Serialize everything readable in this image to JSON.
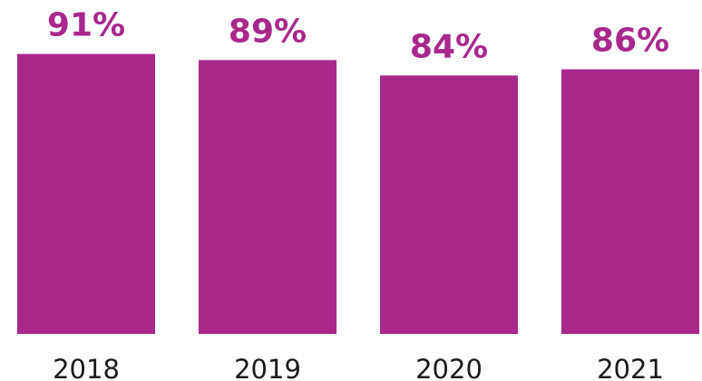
{
  "chart_data": {
    "type": "bar",
    "categories": [
      "2018",
      "2019",
      "2020",
      "2021"
    ],
    "values": [
      91,
      89,
      84,
      86
    ],
    "value_labels": [
      "91%",
      "89%",
      "84%",
      "86%"
    ],
    "title": "",
    "xlabel": "",
    "ylabel": "",
    "grid": false,
    "legend": "none",
    "bar_color": "#a8288c",
    "label_color": "#a8288c"
  }
}
